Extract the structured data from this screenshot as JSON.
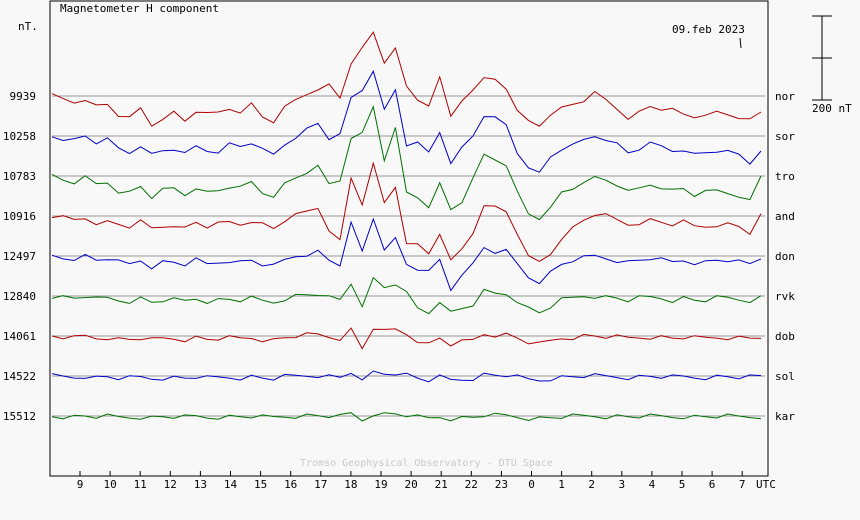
{
  "chart_data": {
    "type": "line",
    "title": "Magnetometer H component",
    "ylabel": "nT.",
    "date_label": "09.feb 2023",
    "scale_bar_label": "200 nT",
    "credit": "Tromso Geophysical Observatory - DTU Space",
    "x_unit_label": "UTC",
    "x_ticks": [
      "9",
      "10",
      "11",
      "12",
      "13",
      "14",
      "15",
      "16",
      "17",
      "18",
      "19",
      "20",
      "21",
      "22",
      "23",
      "0",
      "1",
      "2",
      "3",
      "4",
      "5",
      "6",
      "7"
    ],
    "baseline_values": [
      "9939",
      "10258",
      "10783",
      "10916",
      "12497",
      "12840",
      "14061",
      "14522",
      "15512"
    ],
    "colors": {
      "red": "#b00000",
      "blue": "#0000c8",
      "green": "#007000"
    },
    "series": [
      {
        "name": "nor",
        "color": "red",
        "y": [
          0,
          -8,
          -15,
          -5,
          -25,
          -20,
          -45,
          -55,
          -30,
          -70,
          -50,
          -40,
          -60,
          -35,
          -45,
          -40,
          -30,
          -35,
          -20,
          -50,
          -60,
          -30,
          -10,
          5,
          20,
          25,
          -5,
          80,
          110,
          150,
          80,
          120,
          20,
          -10,
          -20,
          40,
          -50,
          -10,
          20,
          40,
          40,
          20,
          -40,
          -60,
          -70,
          -40,
          -30,
          -20,
          -10,
          5,
          -10,
          -30,
          -50,
          -40,
          -25,
          -30,
          -35,
          -45,
          -50,
          -40,
          -40,
          -45,
          -50,
          -60,
          -40
        ]
      },
      {
        "name": "sor",
        "color": "blue",
        "y": [
          0,
          -5,
          -10,
          0,
          -15,
          -10,
          -30,
          -40,
          -20,
          -45,
          -35,
          -30,
          -45,
          -25,
          -35,
          -35,
          -20,
          -25,
          -15,
          -35,
          -45,
          -20,
          0,
          15,
          30,
          -5,
          0,
          90,
          110,
          160,
          60,
          110,
          -20,
          -20,
          -40,
          10,
          -60,
          -30,
          0,
          50,
          40,
          25,
          -40,
          -70,
          -90,
          -50,
          -30,
          -25,
          -10,
          0,
          -5,
          -20,
          -40,
          -30,
          -20,
          -25,
          -35,
          -30,
          -45,
          -40,
          -35,
          -40,
          -45,
          -65,
          -30
        ]
      },
      {
        "name": "tro",
        "color": "green",
        "y": [
          0,
          -10,
          -15,
          -5,
          -20,
          -15,
          -35,
          -40,
          -25,
          -50,
          -35,
          -30,
          -45,
          -25,
          -40,
          -35,
          -25,
          -30,
          -15,
          -40,
          -45,
          -20,
          -5,
          10,
          20,
          -20,
          -10,
          95,
          100,
          165,
          40,
          110,
          -40,
          -50,
          -70,
          -20,
          -80,
          -60,
          -10,
          50,
          40,
          30,
          -40,
          -90,
          -100,
          -80,
          -40,
          -30,
          -10,
          -5,
          -10,
          -20,
          -40,
          -30,
          -20,
          -25,
          -35,
          -30,
          -45,
          -40,
          -35,
          -40,
          -45,
          -60,
          0
        ]
      },
      {
        "name": "and",
        "color": "red",
        "y": [
          0,
          -5,
          -10,
          -5,
          -15,
          -15,
          -20,
          -25,
          -15,
          -30,
          -25,
          -20,
          -30,
          -15,
          -25,
          -20,
          -15,
          -20,
          -10,
          -20,
          -30,
          -10,
          0,
          10,
          20,
          -30,
          -60,
          90,
          30,
          120,
          30,
          70,
          -60,
          -70,
          -90,
          -40,
          -110,
          -80,
          -40,
          30,
          20,
          10,
          -40,
          -100,
          -110,
          -90,
          -50,
          -30,
          -10,
          5,
          0,
          -10,
          -20,
          -15,
          -10,
          -15,
          -20,
          -15,
          -25,
          -25,
          -20,
          -20,
          -25,
          -40,
          0
        ]
      },
      {
        "name": "don",
        "color": "blue",
        "y": [
          0,
          -5,
          -5,
          0,
          -10,
          -5,
          -15,
          -20,
          -10,
          -25,
          -15,
          -15,
          -20,
          -10,
          -20,
          -15,
          -10,
          -15,
          -10,
          -20,
          -25,
          -10,
          0,
          5,
          10,
          -10,
          -20,
          75,
          10,
          90,
          20,
          40,
          -20,
          -30,
          -40,
          -10,
          -80,
          -40,
          -20,
          20,
          10,
          10,
          -20,
          -50,
          -60,
          -40,
          -20,
          -10,
          -5,
          0,
          -5,
          -10,
          -15,
          -10,
          -5,
          -10,
          -15,
          -10,
          -15,
          -15,
          -10,
          -10,
          -15,
          -20,
          -5
        ]
      },
      {
        "name": "rvk",
        "color": "green",
        "y": [
          0,
          -3,
          -5,
          0,
          -8,
          -5,
          -10,
          -12,
          -6,
          -15,
          -10,
          -10,
          -12,
          -6,
          -12,
          -10,
          -8,
          -10,
          -6,
          -12,
          -15,
          -6,
          0,
          3,
          5,
          -5,
          -10,
          30,
          -20,
          40,
          20,
          30,
          5,
          -30,
          -40,
          -10,
          -40,
          -30,
          -20,
          10,
          5,
          5,
          -10,
          -30,
          -40,
          -25,
          -10,
          -5,
          0,
          0,
          -3,
          -5,
          -10,
          -5,
          -3,
          -5,
          -10,
          -5,
          -10,
          -10,
          -5,
          -5,
          -8,
          -10,
          -3
        ]
      },
      {
        "name": "dob",
        "color": "red",
        "y": [
          0,
          -3,
          -5,
          0,
          -5,
          -3,
          -8,
          -8,
          -5,
          -10,
          -6,
          -6,
          -8,
          -4,
          -8,
          -6,
          -5,
          -6,
          -4,
          -8,
          -10,
          -4,
          0,
          2,
          3,
          -2,
          -5,
          15,
          -30,
          20,
          10,
          15,
          5,
          -10,
          -20,
          -5,
          -20,
          -15,
          -10,
          5,
          3,
          3,
          -5,
          -15,
          -20,
          -12,
          -5,
          -3,
          0,
          0,
          -2,
          -3,
          -5,
          -3,
          -2,
          -3,
          -5,
          -3,
          -5,
          -5,
          -3,
          -3,
          -4,
          -5,
          -2
        ]
      },
      {
        "name": "sol",
        "color": "blue",
        "y": [
          0,
          -2,
          -3,
          0,
          -4,
          -2,
          -5,
          -5,
          -3,
          -6,
          -4,
          -4,
          -5,
          -2,
          -5,
          -4,
          -3,
          -4,
          -2,
          -5,
          -6,
          -2,
          0,
          1,
          2,
          -1,
          -3,
          10,
          -15,
          10,
          6,
          8,
          3,
          -5,
          -10,
          -3,
          -10,
          -8,
          -5,
          3,
          2,
          2,
          -3,
          -8,
          -10,
          -6,
          -3,
          -2,
          0,
          0,
          -1,
          -2,
          -3,
          -2,
          -1,
          -2,
          -3,
          -2,
          -3,
          -3,
          -2,
          -2,
          -3,
          -3,
          -1
        ]
      },
      {
        "name": "kar",
        "color": "green",
        "y": [
          0,
          -1,
          -2,
          0,
          -2,
          -1,
          -3,
          -3,
          -2,
          -4,
          -2,
          -2,
          -3,
          -1,
          -3,
          -2,
          -2,
          -2,
          -1,
          -3,
          -3,
          -1,
          0,
          1,
          1,
          0,
          -2,
          6,
          -10,
          6,
          4,
          5,
          2,
          -3,
          -6,
          -2,
          -6,
          -5,
          -3,
          2,
          1,
          1,
          -2,
          -5,
          -6,
          -4,
          -2,
          -1,
          0,
          0,
          -1,
          -1,
          -2,
          -1,
          -1,
          -1,
          -2,
          -1,
          -2,
          -2,
          -1,
          -1,
          -2,
          -2,
          -1
        ]
      }
    ]
  }
}
